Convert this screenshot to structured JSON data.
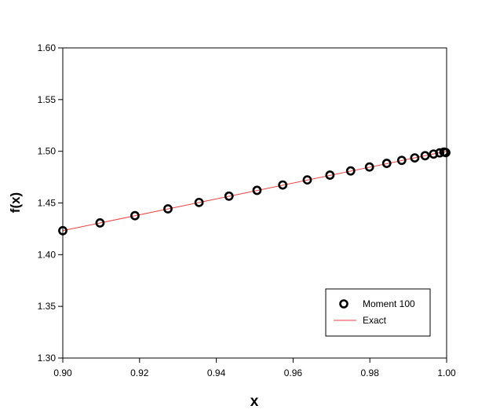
{
  "chart_data": {
    "type": "line",
    "title": "",
    "xlabel": "x",
    "ylabel": "f(x)",
    "xlim": [
      0.9,
      1.0
    ],
    "ylim": [
      1.3,
      1.6
    ],
    "xticks": [
      "0.90",
      "0.92",
      "0.94",
      "0.96",
      "0.98",
      "1.00"
    ],
    "yticks": [
      "1.30",
      "1.35",
      "1.40",
      "1.45",
      "1.50",
      "1.55",
      "1.60"
    ],
    "grid": false,
    "legend_position": "bottom-right",
    "series": [
      {
        "name": "Moment 100",
        "type": "scatter",
        "marker": "open-circle",
        "color": "#000000",
        "x": [
          0.9,
          0.9097,
          0.9188,
          0.9274,
          0.9355,
          0.9433,
          0.9506,
          0.9573,
          0.9637,
          0.9696,
          0.975,
          0.9799,
          0.9844,
          0.9883,
          0.9917,
          0.9944,
          0.9966,
          0.9982,
          0.9993,
          0.9998
        ],
        "y": [
          1.4232,
          1.4307,
          1.4377,
          1.4443,
          1.4505,
          1.4566,
          1.4622,
          1.4674,
          1.4723,
          1.4769,
          1.481,
          1.4848,
          1.4883,
          1.4912,
          1.4936,
          1.4957,
          1.4973,
          1.4985,
          1.4993,
          1.4987
        ]
      },
      {
        "name": "Exact",
        "type": "line",
        "color": "#e8413c",
        "x": [
          0.9,
          1.0
        ],
        "y": [
          1.4232,
          1.5
        ]
      }
    ]
  }
}
